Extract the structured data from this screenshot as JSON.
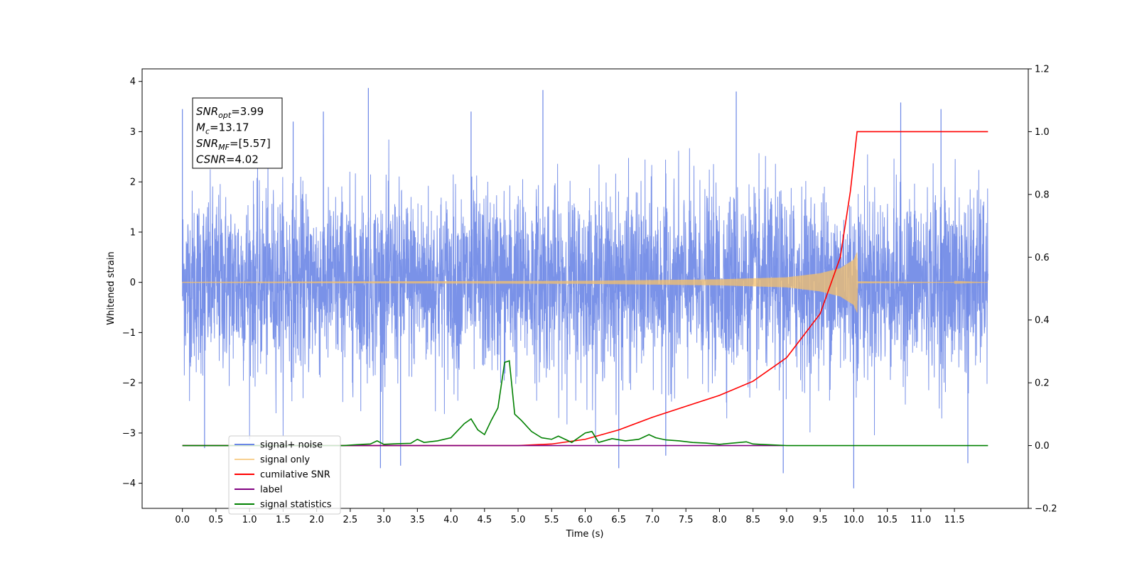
{
  "chart_data": {
    "type": "line",
    "title": "",
    "xlabel": "Time (s)",
    "ylabel": "Whitened strain",
    "xlim": [
      -0.6,
      12.6
    ],
    "ylim": [
      -4.5,
      4.25
    ],
    "y2lim": [
      -0.2,
      1.2
    ],
    "grid": false,
    "legend_position": "lower-left",
    "x_ticks": [
      "0.0",
      "0.5",
      "1.0",
      "1.5",
      "2.0",
      "2.5",
      "3.0",
      "3.5",
      "4.0",
      "4.5",
      "5.0",
      "5.5",
      "6.0",
      "6.5",
      "7.0",
      "7.5",
      "8.0",
      "8.5",
      "9.0",
      "9.5",
      "10.0",
      "10.5",
      "11.0",
      "11.5"
    ],
    "y_ticks": [
      "4",
      "3",
      "2",
      "1",
      "0",
      "−1",
      "−2",
      "−3",
      "−4"
    ],
    "y2_ticks": [
      "1.2",
      "1.0",
      "0.8",
      "0.6",
      "0.4",
      "0.2",
      "0.0",
      "−0.2"
    ],
    "info_box": [
      {
        "base": "SNR",
        "sub": "opt",
        "value": "=3.99"
      },
      {
        "base": "M",
        "sub": "c",
        "value": "=13.17"
      },
      {
        "base": "SNR",
        "sub": "MF",
        "value": "=[5.57]"
      },
      {
        "base": "CSNR",
        "sub": "",
        "value": "=4.02"
      }
    ],
    "series": [
      {
        "name": "signal+ noise",
        "color": "#6b86e6",
        "axis": "left",
        "noise_std": 0.9,
        "spikes": [
          [
            0.0,
            3.45
          ],
          [
            0.33,
            -3.3
          ],
          [
            1.65,
            3.2
          ],
          [
            2.1,
            3.4
          ],
          [
            2.77,
            3.87
          ],
          [
            2.95,
            -3.7
          ],
          [
            3.25,
            -3.65
          ],
          [
            4.3,
            3.4
          ],
          [
            5.37,
            3.83
          ],
          [
            6.5,
            -3.7
          ],
          [
            7.2,
            -3.45
          ],
          [
            8.25,
            3.8
          ],
          [
            8.95,
            -3.8
          ],
          [
            10.0,
            -4.1
          ],
          [
            10.7,
            3.58
          ],
          [
            11.3,
            3.45
          ],
          [
            11.7,
            -3.6
          ]
        ]
      },
      {
        "name": "signal only",
        "color": "#f5c06b",
        "axis": "left",
        "envelope": [
          [
            0,
            0.01
          ],
          [
            6.0,
            0.03
          ],
          [
            8.0,
            0.06
          ],
          [
            9.0,
            0.1
          ],
          [
            9.5,
            0.18
          ],
          [
            9.8,
            0.28
          ],
          [
            10.0,
            0.45
          ],
          [
            10.05,
            0.6
          ],
          [
            10.06,
            0.02
          ],
          [
            12.0,
            0.0
          ]
        ]
      },
      {
        "name": "cumilative SNR",
        "color": "#ff0000",
        "axis": "right",
        "x": [
          0,
          4.5,
          5.0,
          5.5,
          6.0,
          6.5,
          7.0,
          7.5,
          8.0,
          8.5,
          9.0,
          9.5,
          9.8,
          9.95,
          10.05,
          12.0
        ],
        "y": [
          0,
          0,
          0.0,
          0.005,
          0.02,
          0.05,
          0.09,
          0.125,
          0.16,
          0.205,
          0.28,
          0.42,
          0.6,
          0.81,
          1.0,
          1.0
        ]
      },
      {
        "name": "label",
        "color": "#800080",
        "axis": "right",
        "x": [
          0,
          8.95
        ],
        "y": [
          0,
          0
        ]
      },
      {
        "name": "signal statistics",
        "color": "#008000",
        "axis": "right",
        "x": [
          0,
          2.4,
          2.6,
          2.8,
          2.9,
          3.0,
          3.2,
          3.4,
          3.5,
          3.6,
          3.8,
          4.0,
          4.2,
          4.3,
          4.4,
          4.5,
          4.6,
          4.7,
          4.8,
          4.87,
          4.95,
          5.05,
          5.2,
          5.35,
          5.5,
          5.6,
          5.8,
          6.0,
          6.1,
          6.2,
          6.4,
          6.6,
          6.8,
          6.95,
          7.05,
          7.2,
          7.4,
          7.6,
          7.8,
          8.0,
          8.4,
          8.5,
          8.6,
          8.8,
          9.0,
          12.0
        ],
        "y": [
          0,
          0.0,
          0.003,
          0.005,
          0.015,
          0.004,
          0.006,
          0.007,
          0.02,
          0.01,
          0.015,
          0.025,
          0.07,
          0.085,
          0.05,
          0.035,
          0.08,
          0.12,
          0.265,
          0.27,
          0.1,
          0.08,
          0.045,
          0.025,
          0.02,
          0.03,
          0.01,
          0.04,
          0.045,
          0.01,
          0.022,
          0.015,
          0.02,
          0.035,
          0.025,
          0.018,
          0.015,
          0.01,
          0.008,
          0.004,
          0.012,
          0.005,
          0.004,
          0.002,
          0.0,
          0.0
        ]
      }
    ],
    "legend": [
      "signal+ noise",
      "signal only",
      "cumilative SNR",
      "label",
      "signal statistics"
    ]
  }
}
